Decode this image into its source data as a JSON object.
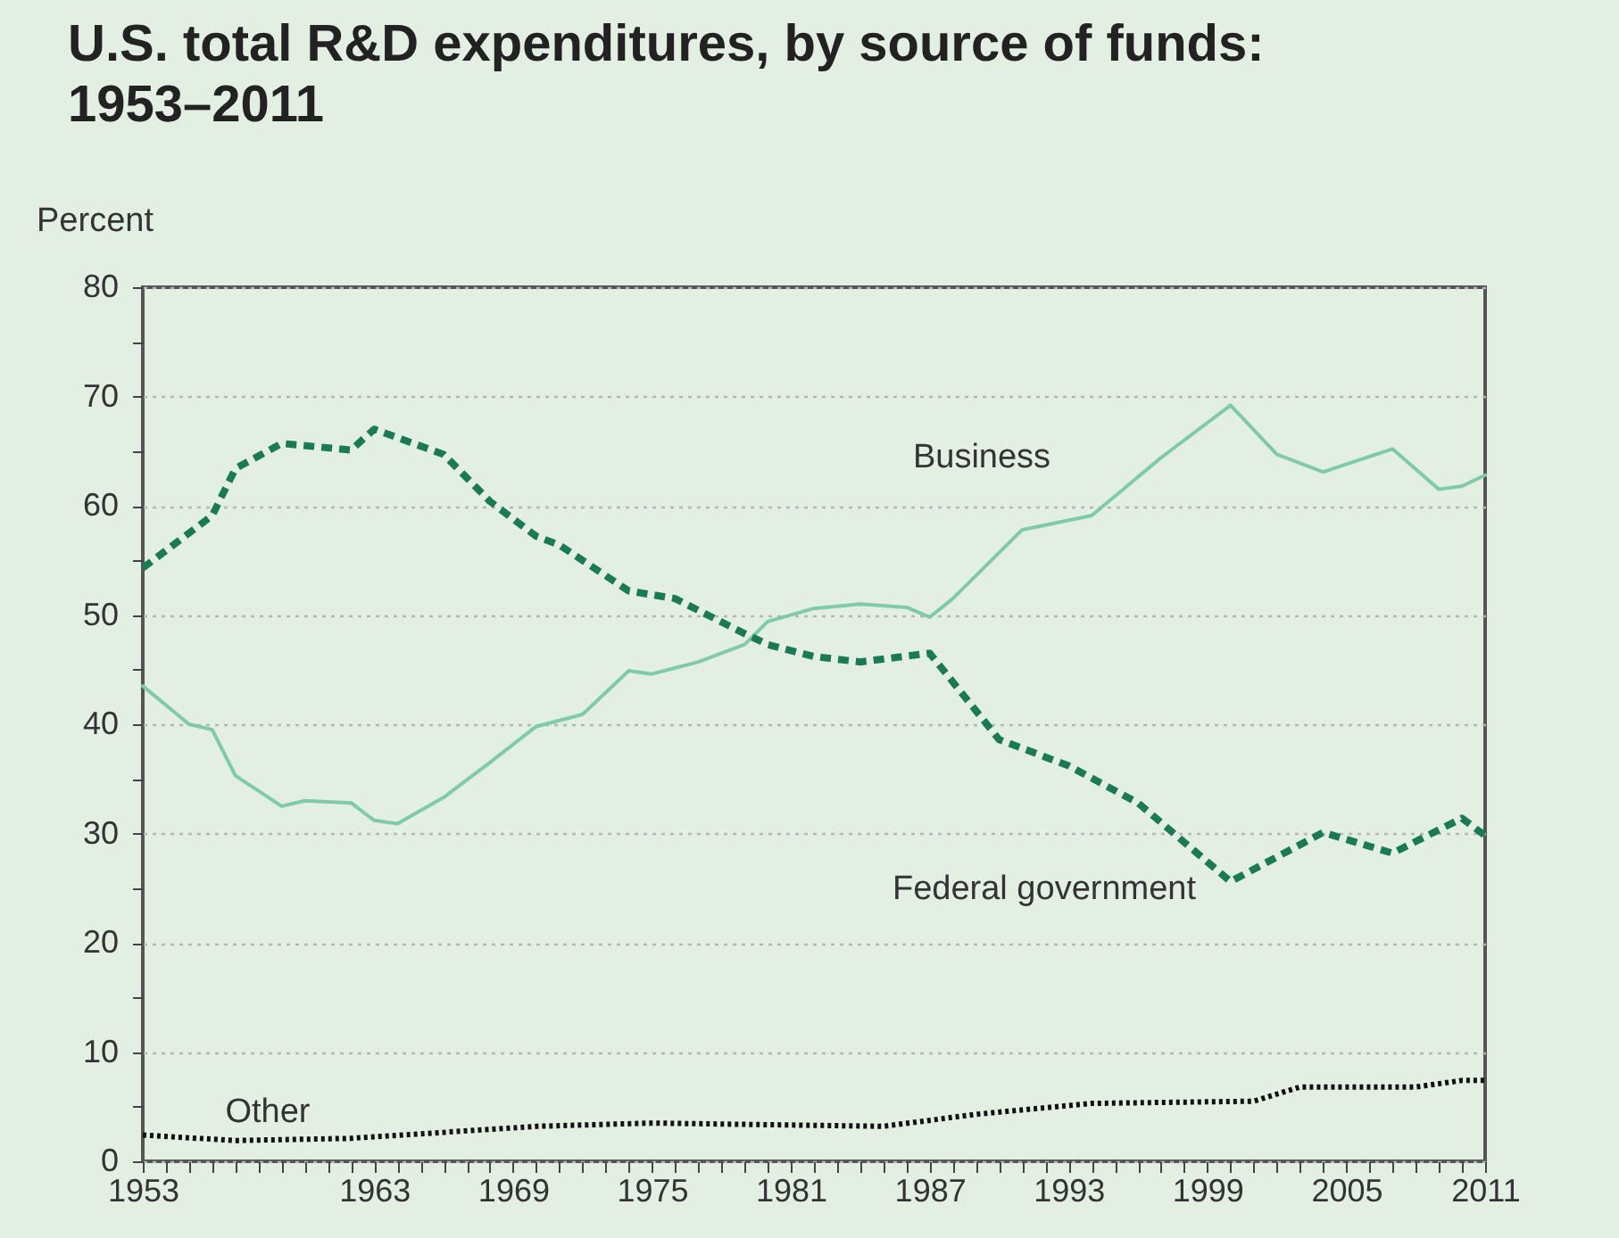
{
  "chart_data": {
    "type": "line",
    "title": "U.S. total R&D expenditures, by source of funds: 1953–2011",
    "ylabel": "Percent",
    "xlim": [
      1953,
      2011
    ],
    "ylim": [
      0,
      80
    ],
    "xticks": [
      1953,
      {
        "value": 1954,
        "label": null
      },
      {
        "value": 1955,
        "label": null
      },
      {
        "value": 1956,
        "label": null
      },
      {
        "value": 1957,
        "label": null
      },
      {
        "value": 1958,
        "label": null
      },
      {
        "value": 1959,
        "label": null
      },
      {
        "value": 1960,
        "label": null
      },
      {
        "value": 1961,
        "label": null
      },
      {
        "value": 1962,
        "label": null
      },
      1963,
      {
        "value": 1964,
        "label": null
      },
      {
        "value": 1965,
        "label": null
      },
      {
        "value": 1966,
        "label": null
      },
      {
        "value": 1967,
        "label": null
      },
      {
        "value": 1968,
        "label": null
      },
      1969,
      {
        "value": 1970,
        "label": null
      },
      {
        "value": 1971,
        "label": null
      },
      {
        "value": 1972,
        "label": null
      },
      {
        "value": 1973,
        "label": null
      },
      {
        "value": 1974,
        "label": null
      },
      1975,
      {
        "value": 1976,
        "label": null
      },
      {
        "value": 1977,
        "label": null
      },
      {
        "value": 1978,
        "label": null
      },
      {
        "value": 1979,
        "label": null
      },
      {
        "value": 1980,
        "label": null
      },
      1981,
      {
        "value": 1982,
        "label": null
      },
      {
        "value": 1983,
        "label": null
      },
      {
        "value": 1984,
        "label": null
      },
      {
        "value": 1985,
        "label": null
      },
      {
        "value": 1986,
        "label": null
      },
      1987,
      {
        "value": 1988,
        "label": null
      },
      {
        "value": 1989,
        "label": null
      },
      {
        "value": 1990,
        "label": null
      },
      {
        "value": 1991,
        "label": null
      },
      {
        "value": 1992,
        "label": null
      },
      1993,
      {
        "value": 1994,
        "label": null
      },
      {
        "value": 1995,
        "label": null
      },
      {
        "value": 1996,
        "label": null
      },
      {
        "value": 1997,
        "label": null
      },
      {
        "value": 1998,
        "label": null
      },
      1999,
      {
        "value": 2000,
        "label": null
      },
      {
        "value": 2001,
        "label": null
      },
      {
        "value": 2002,
        "label": null
      },
      {
        "value": 2003,
        "label": null
      },
      {
        "value": 2004,
        "label": null
      },
      2005,
      {
        "value": 2006,
        "label": null
      },
      {
        "value": 2007,
        "label": null
      },
      {
        "value": 2008,
        "label": null
      },
      {
        "value": 2009,
        "label": null
      },
      {
        "value": 2010,
        "label": null
      },
      2011
    ],
    "yticks": [
      0,
      {
        "value": 5,
        "label": null
      },
      10,
      {
        "value": 15,
        "label": null
      },
      20,
      {
        "value": 25,
        "label": null
      },
      30,
      {
        "value": 35,
        "label": null
      },
      40,
      {
        "value": 45,
        "label": null
      },
      50,
      {
        "value": 55,
        "label": null
      },
      60,
      {
        "value": 65,
        "label": null
      },
      70,
      {
        "value": 75,
        "label": null
      },
      80
    ],
    "grid": "y",
    "series": [
      {
        "name": "Business",
        "color": "#7fcaa9",
        "line_style": "solid",
        "x": [
          1953,
          1955,
          1956,
          1957,
          1959,
          1960,
          1962,
          1963,
          1964,
          1966,
          1968,
          1970,
          1972,
          1974,
          1975,
          1977,
          1979,
          1980,
          1982,
          1984,
          1986,
          1987,
          1988,
          1991,
          1994,
          1997,
          1998,
          2000,
          2002,
          2004,
          2007,
          2009,
          2010,
          2011
        ],
        "values": [
          43.5,
          40,
          39.5,
          35.3,
          32.5,
          33,
          32.8,
          31.2,
          30.9,
          33.3,
          36.5,
          39.8,
          40.9,
          44.9,
          44.6,
          45.7,
          47.3,
          49.4,
          50.6,
          51,
          50.7,
          49.8,
          51.5,
          57.8,
          59.1,
          64.4,
          66,
          69.2,
          64.7,
          63.1,
          65.2,
          61.5,
          61.8,
          62.8
        ]
      },
      {
        "name": "Federal government",
        "color": "#1b7a56",
        "line_style": "dashed",
        "x": [
          1953,
          1956,
          1957,
          1959,
          1962,
          1963,
          1966,
          1968,
          1970,
          1971,
          1974,
          1976,
          1979,
          1980,
          1982,
          1984,
          1987,
          1990,
          1993,
          1996,
          2000,
          2004,
          2007,
          2010,
          2011
        ],
        "values": [
          54.3,
          59.1,
          63.4,
          65.7,
          65.1,
          67,
          64.7,
          60.4,
          57.2,
          56.4,
          52.2,
          51.5,
          48.3,
          47.3,
          46.2,
          45.7,
          46.5,
          38.6,
          36.2,
          32.8,
          25.6,
          30.1,
          28.2,
          31.4,
          29.8
        ]
      },
      {
        "name": "Other",
        "color": "#111111",
        "line_style": "dotted",
        "x": [
          1953,
          1957,
          1962,
          1970,
          1975,
          1985,
          1989,
          1994,
          2001,
          2003,
          2008,
          2010,
          2011
        ],
        "values": [
          2.4,
          1.9,
          2.1,
          3.2,
          3.5,
          3.2,
          4.3,
          5.3,
          5.5,
          6.8,
          6.8,
          7.4,
          7.4
        ]
      }
    ]
  }
}
